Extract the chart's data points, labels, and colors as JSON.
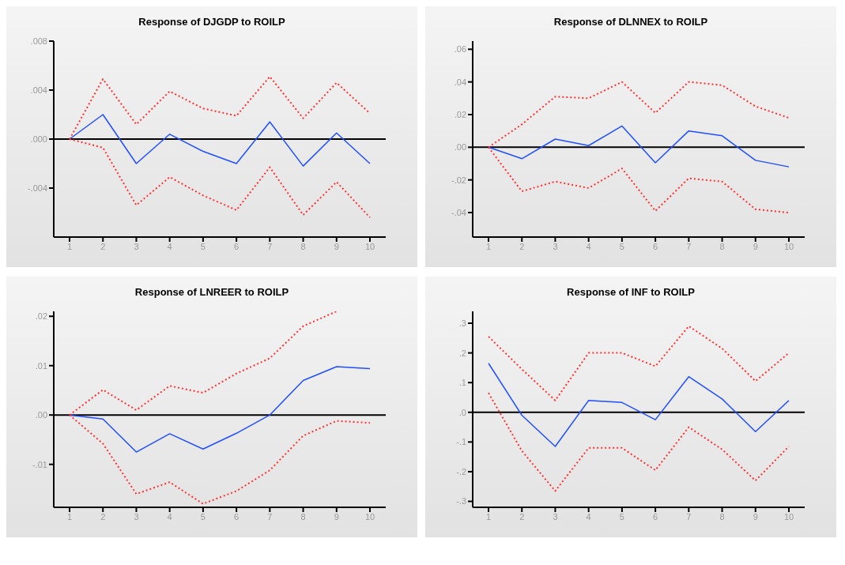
{
  "chart_data": [
    {
      "type": "line",
      "title": "Response of DJGDP to ROILP",
      "categories": [
        "1",
        "2",
        "3",
        "4",
        "5",
        "6",
        "7",
        "8",
        "9",
        "10"
      ],
      "ylim": [
        -0.008,
        0.008
      ],
      "yticks": [
        {
          "value": 0.008,
          "label": ".008"
        },
        {
          "value": 0.004,
          "label": ".004"
        },
        {
          "value": 0,
          "label": ".000"
        },
        {
          "value": -0.004,
          "label": "-.004"
        }
      ],
      "grid": false,
      "legend": false,
      "ref_lines": [
        {
          "axis": "y",
          "value": 0,
          "color": "#000000"
        }
      ],
      "series": [
        {
          "color": "#1f4fff",
          "line_style": "solid",
          "values": [
            0,
            0.002,
            -0.002,
            0.0004,
            -0.001,
            -0.002,
            0.0014,
            -0.0022,
            0.0005,
            -0.002
          ]
        },
        {
          "color": "#ff3030",
          "line_style": "dotted",
          "values": [
            0,
            0.0049,
            0.0012,
            0.0039,
            0.0025,
            0.0019,
            0.0051,
            0.0017,
            0.0046,
            0.0021
          ]
        },
        {
          "color": "#ff3030",
          "line_style": "dotted",
          "values": [
            0,
            -0.0007,
            -0.0054,
            -0.0031,
            -0.0046,
            -0.0058,
            -0.0023,
            -0.0062,
            -0.0035,
            -0.0064
          ]
        }
      ]
    },
    {
      "type": "line",
      "title": "Response of DLNNEX to ROILP",
      "categories": [
        "1",
        "2",
        "3",
        "4",
        "5",
        "6",
        "7",
        "8",
        "9",
        "10"
      ],
      "ylim": [
        -0.055,
        0.065
      ],
      "yticks": [
        {
          "value": 0.06,
          "label": ".06"
        },
        {
          "value": 0.04,
          "label": ".04"
        },
        {
          "value": 0.02,
          "label": ".02"
        },
        {
          "value": 0,
          "label": ".00"
        },
        {
          "value": -0.02,
          "label": "-.02"
        },
        {
          "value": -0.04,
          "label": "-.04"
        }
      ],
      "grid": false,
      "legend": false,
      "ref_lines": [
        {
          "axis": "y",
          "value": 0,
          "color": "#000000"
        }
      ],
      "series": [
        {
          "color": "#1f4fff",
          "line_style": "solid",
          "values": [
            0,
            -0.007,
            0.005,
            0.001,
            0.013,
            -0.0095,
            0.01,
            0.007,
            -0.008,
            -0.012
          ]
        },
        {
          "color": "#ff3030",
          "line_style": "dotted",
          "values": [
            0,
            0.014,
            0.031,
            0.03,
            0.04,
            0.021,
            0.04,
            0.038,
            0.025,
            0.018
          ]
        },
        {
          "color": "#ff3030",
          "line_style": "dotted",
          "values": [
            0,
            -0.027,
            -0.021,
            -0.025,
            -0.013,
            -0.039,
            -0.019,
            -0.021,
            -0.038,
            -0.04
          ]
        }
      ]
    },
    {
      "type": "line",
      "title": "Response of LNREER to ROILP",
      "categories": [
        "1",
        "2",
        "3",
        "4",
        "5",
        "6",
        "7",
        "8",
        "9",
        "10"
      ],
      "ylim": [
        -0.0187,
        0.021
      ],
      "yticks": [
        {
          "value": 0.02,
          "label": ".02"
        },
        {
          "value": 0.01,
          "label": ".01"
        },
        {
          "value": 0,
          "label": ".00"
        },
        {
          "value": -0.01,
          "label": "-.01"
        }
      ],
      "grid": false,
      "legend": false,
      "ref_lines": [
        {
          "axis": "y",
          "value": 0,
          "color": "#000000"
        }
      ],
      "series": [
        {
          "color": "#1f4fff",
          "line_style": "solid",
          "values": [
            0,
            -0.0008,
            -0.0075,
            -0.0038,
            -0.0069,
            -0.0037,
            0,
            0.007,
            0.0098,
            0.0094
          ]
        },
        {
          "color": "#ff3030",
          "line_style": "dotted",
          "values": [
            0,
            0.0051,
            0.001,
            0.0059,
            0.0045,
            0.0084,
            0.0115,
            0.018,
            0.021,
            null
          ]
        },
        {
          "color": "#ff3030",
          "line_style": "dotted",
          "values": [
            0,
            -0.0058,
            -0.016,
            -0.0136,
            -0.018,
            -0.0154,
            -0.0112,
            -0.0042,
            -0.0012,
            -0.0016
          ]
        }
      ]
    },
    {
      "type": "line",
      "title": "Response of INF to ROILP",
      "categories": [
        "1",
        "2",
        "3",
        "4",
        "5",
        "6",
        "7",
        "8",
        "9",
        "10"
      ],
      "ylim": [
        -0.32,
        0.34
      ],
      "yticks": [
        {
          "value": 0.3,
          "label": ".3"
        },
        {
          "value": 0.2,
          "label": ".2"
        },
        {
          "value": 0.1,
          "label": ".1"
        },
        {
          "value": 0,
          "label": ".0"
        },
        {
          "value": -0.1,
          "label": "-.1"
        },
        {
          "value": -0.2,
          "label": "-.2"
        },
        {
          "value": -0.3,
          "label": "-.3"
        }
      ],
      "grid": false,
      "legend": false,
      "ref_lines": [
        {
          "axis": "y",
          "value": 0,
          "color": "#000000"
        }
      ],
      "series": [
        {
          "color": "#1f4fff",
          "line_style": "solid",
          "values": [
            0.165,
            -0.01,
            -0.115,
            0.04,
            0.033,
            -0.025,
            0.12,
            0.045,
            -0.065,
            0.04
          ]
        },
        {
          "color": "#ff3030",
          "line_style": "dotted",
          "values": [
            0.255,
            0.145,
            0.04,
            0.2,
            0.2,
            0.155,
            0.29,
            0.215,
            0.105,
            0.2
          ]
        },
        {
          "color": "#ff3030",
          "line_style": "dotted",
          "values": [
            0.065,
            -0.13,
            -0.265,
            -0.12,
            -0.12,
            -0.195,
            -0.05,
            -0.125,
            -0.23,
            -0.115
          ]
        }
      ]
    }
  ]
}
